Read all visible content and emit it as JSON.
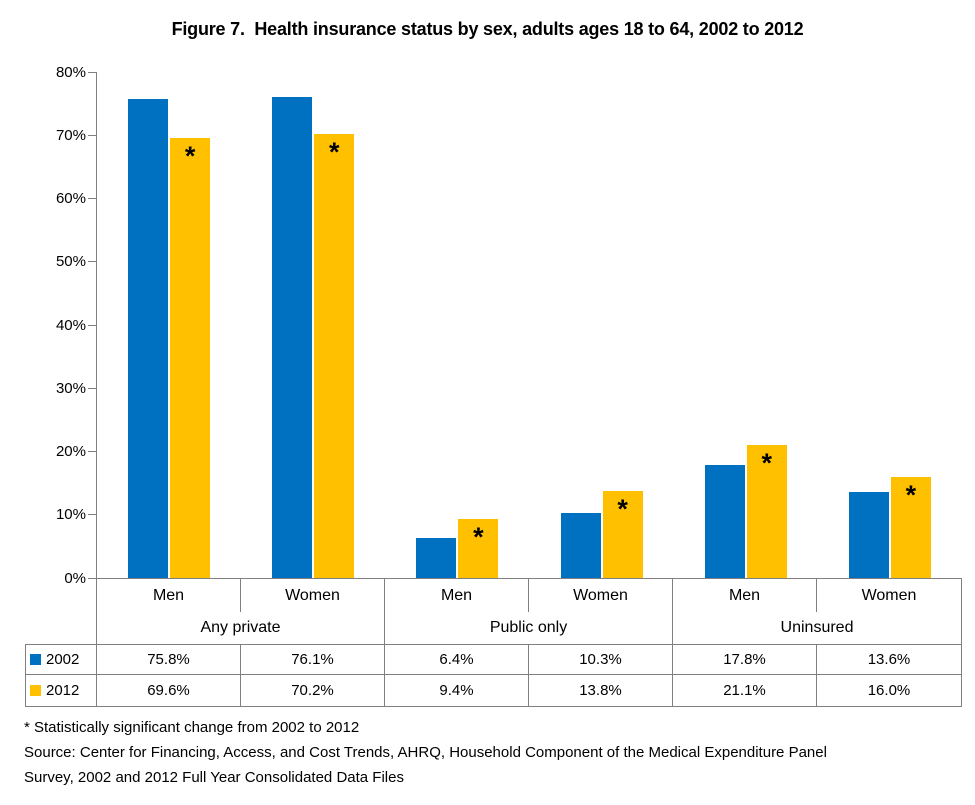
{
  "chart_data": {
    "type": "bar",
    "title": "Figure 7.  Health insurance status by sex, adults ages 18 to 64, 2002 to 2012",
    "groups": [
      "Any private",
      "Public only",
      "Uninsured"
    ],
    "categories": [
      "Men",
      "Women",
      "Men",
      "Women",
      "Men",
      "Women"
    ],
    "y_axis": {
      "min": 0,
      "max": 80,
      "step": 10,
      "unit": "%",
      "tick_labels": [
        "0%",
        "10%",
        "20%",
        "30%",
        "40%",
        "50%",
        "60%",
        "70%",
        "80%"
      ]
    },
    "grid": false,
    "legend_position": "table-left",
    "significance_marker": "*",
    "series": [
      {
        "name": "2002",
        "color": "#0070C0",
        "values": [
          75.8,
          76.1,
          6.4,
          10.3,
          17.8,
          13.6
        ],
        "labels": [
          "75.8%",
          "76.1%",
          "6.4%",
          "10.3%",
          "17.8%",
          "13.6%"
        ],
        "significant": [
          false,
          false,
          false,
          false,
          false,
          false
        ]
      },
      {
        "name": "2012",
        "color": "#FFC000",
        "values": [
          69.6,
          70.2,
          9.4,
          13.8,
          21.1,
          16.0
        ],
        "labels": [
          "69.6%",
          "70.2%",
          "9.4%",
          "13.8%",
          "21.1%",
          "16.0%"
        ],
        "significant": [
          true,
          true,
          true,
          true,
          true,
          true
        ]
      }
    ]
  },
  "footnotes": {
    "line1": "* Statistically significant change from 2002 to 2012",
    "line2": "Source: Center for Financing, Access, and Cost Trends, AHRQ, Household Component of the Medical Expenditure Panel",
    "line3": "Survey, 2002 and 2012 Full Year Consolidated Data Files"
  }
}
